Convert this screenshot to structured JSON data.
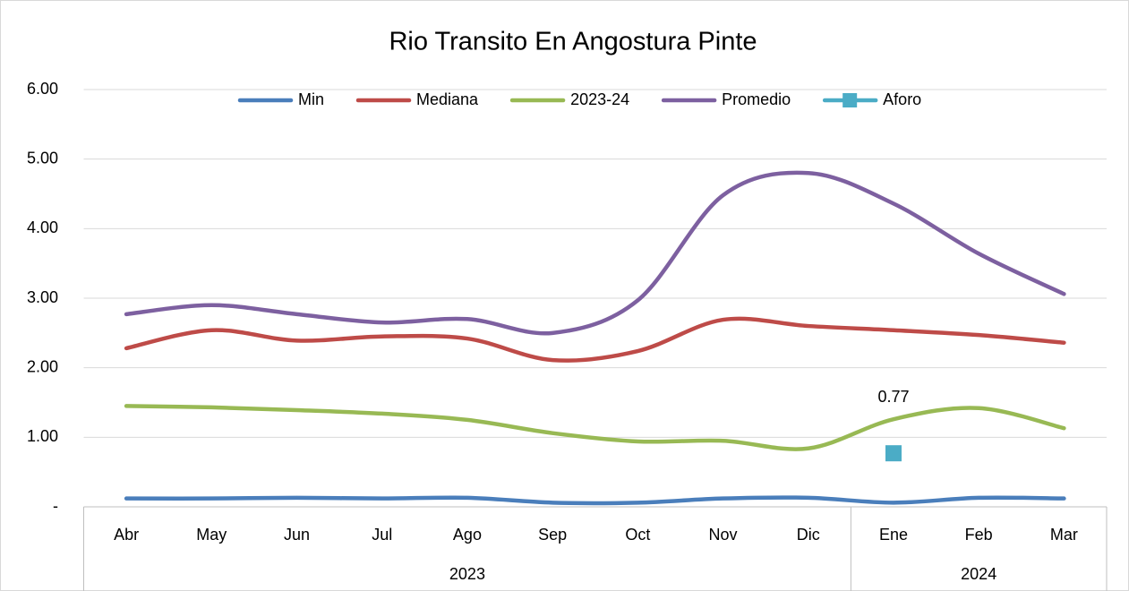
{
  "chart_data": {
    "type": "line",
    "title": "Rio Transito En Angostura Pinte",
    "categories": [
      "Abr",
      "May",
      "Jun",
      "Jul",
      "Ago",
      "Sep",
      "Oct",
      "Nov",
      "Dic",
      "Ene",
      "Feb",
      "Mar"
    ],
    "category_groups": [
      {
        "label": "2023",
        "size": 9
      },
      {
        "label": "2024",
        "size": 3
      }
    ],
    "series": [
      {
        "name": "Min",
        "color": "#4a7ebb",
        "values": [
          0.12,
          0.12,
          0.13,
          0.12,
          0.13,
          0.06,
          0.06,
          0.12,
          0.13,
          0.06,
          0.13,
          0.12
        ]
      },
      {
        "name": "Mediana",
        "color": "#be4b48",
        "values": [
          2.28,
          2.54,
          2.39,
          2.45,
          2.42,
          2.11,
          2.24,
          2.69,
          2.6,
          2.54,
          2.47,
          2.36
        ]
      },
      {
        "name": "2023-24",
        "color": "#98b954",
        "values": [
          1.45,
          1.43,
          1.39,
          1.34,
          1.25,
          1.06,
          0.94,
          0.95,
          0.84,
          1.26,
          1.42,
          1.13
        ]
      },
      {
        "name": "Promedio",
        "color": "#7d60a0",
        "values": [
          2.77,
          2.9,
          2.77,
          2.65,
          2.7,
          2.5,
          2.97,
          4.48,
          4.8,
          4.36,
          3.64,
          3.06
        ]
      },
      {
        "name": "Aforo",
        "color": "#4bacc6",
        "marker": "square",
        "values": [
          null,
          null,
          null,
          null,
          null,
          null,
          null,
          null,
          null,
          0.77,
          null,
          null
        ],
        "value_labels": [
          null,
          null,
          null,
          null,
          null,
          null,
          null,
          null,
          null,
          "0.77",
          null,
          null
        ]
      }
    ],
    "ylim": [
      0,
      6
    ],
    "yticks": [
      {
        "value": 0,
        "label": "-"
      },
      {
        "value": 1,
        "label": "1.00"
      },
      {
        "value": 2,
        "label": "2.00"
      },
      {
        "value": 3,
        "label": "3.00"
      },
      {
        "value": 4,
        "label": "4.00"
      },
      {
        "value": 5,
        "label": "5.00"
      },
      {
        "value": 6,
        "label": "6.00"
      }
    ],
    "grid": true,
    "legend": "top"
  }
}
